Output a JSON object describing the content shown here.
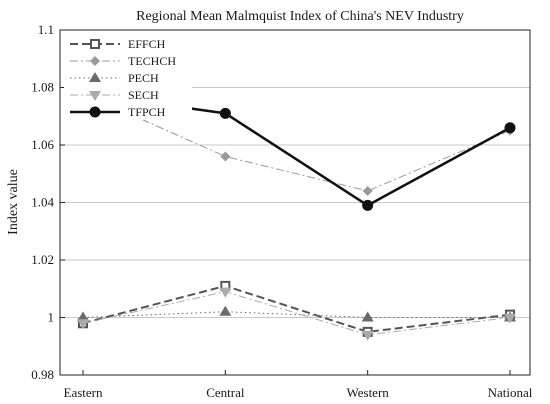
{
  "chart_data": {
    "type": "line",
    "title": "Regional Mean Malmquist Index of China's NEV Industry",
    "xlabel": "",
    "ylabel": "Index value",
    "categories": [
      "Eastern",
      "Central",
      "Western",
      "National"
    ],
    "ylim": [
      0.98,
      1.1
    ],
    "yticks": [
      0.98,
      1,
      1.02,
      1.04,
      1.06,
      1.08,
      1.1
    ],
    "ytick_labels": [
      "0.98",
      "1",
      "1.02",
      "1.04",
      "1.06",
      "1.08",
      "1.1"
    ],
    "grid": true,
    "legend_position": "top-left",
    "series": [
      {
        "name": "EFFCH",
        "values": [
          0.998,
          1.011,
          0.995,
          1.001
        ],
        "color": "#555555",
        "dash": "dashed",
        "marker": "open-square",
        "width": 2
      },
      {
        "name": "TECHCH",
        "values": [
          1.078,
          1.056,
          1.044,
          1.065
        ],
        "color": "#9a9a9a",
        "dash": "dashdot",
        "marker": "diamond",
        "width": 1
      },
      {
        "name": "PECH",
        "values": [
          1.0,
          1.002,
          1.0,
          1.0
        ],
        "color": "#6a6a6a",
        "dash": "dotted",
        "marker": "triangle-up",
        "width": 1
      },
      {
        "name": "SECH",
        "values": [
          0.998,
          1.009,
          0.994,
          1.0
        ],
        "color": "#aaaaaa",
        "dash": "dashdot",
        "marker": "triangle-down",
        "width": 1
      },
      {
        "name": "TFPCH",
        "values": [
          1.078,
          1.071,
          1.039,
          1.066
        ],
        "color": "#111111",
        "dash": "solid",
        "marker": "circle",
        "width": 2.5
      }
    ]
  }
}
